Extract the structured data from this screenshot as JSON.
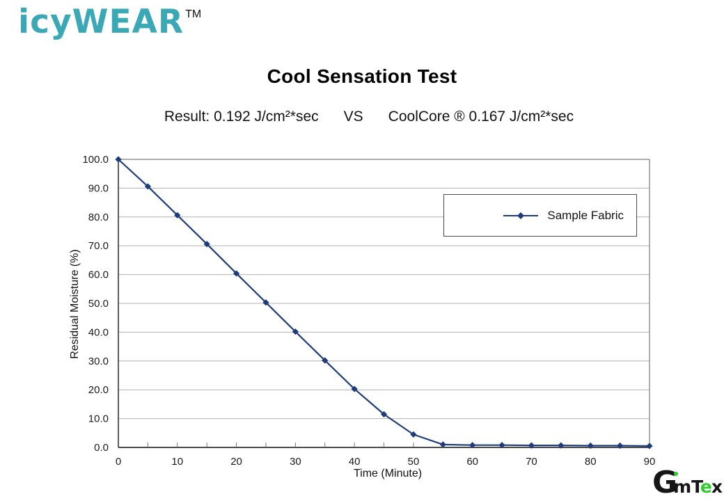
{
  "brand": {
    "part1": "icy",
    "part2": "WEAR",
    "tm": "TM"
  },
  "title": "Cool Sensation Test",
  "subtitle": {
    "result": "Result: 0.192 J/cm²*sec",
    "vs": "VS",
    "competitor": "CoolCore ® 0.167 J/cm²*sec"
  },
  "chart_data": {
    "type": "line",
    "x": [
      0,
      5,
      10,
      15,
      20,
      25,
      30,
      35,
      40,
      45,
      50,
      55,
      60,
      65,
      70,
      75,
      80,
      85,
      90
    ],
    "series": [
      {
        "name": "Sample Fabric",
        "values": [
          100.0,
          90.6,
          80.6,
          70.6,
          60.4,
          50.3,
          40.2,
          30.2,
          20.3,
          11.5,
          4.5,
          1.0,
          0.8,
          0.8,
          0.7,
          0.7,
          0.6,
          0.6,
          0.5
        ]
      }
    ],
    "title": "",
    "xlabel": "Time (Minute)",
    "ylabel": "Residual Moisture (%)",
    "xlim": [
      0,
      90
    ],
    "ylim": [
      0,
      100
    ],
    "xtick_labels": [
      "0",
      "10",
      "20",
      "30",
      "40",
      "50",
      "60",
      "70",
      "80",
      "90"
    ],
    "xtick_label_step": 10,
    "xtick_minor_step": 5,
    "ytick_labels": [
      "0.0",
      "10.0",
      "20.0",
      "30.0",
      "40.0",
      "50.0",
      "60.0",
      "70.0",
      "80.0",
      "90.0",
      "100.0"
    ],
    "ytick_step": 10,
    "grid": "horizontal",
    "legend_position": "upper-right",
    "marker": "diamond",
    "line_color": "#1E3C7B"
  },
  "footer_logo": {
    "g": "G",
    "im": "m",
    "t": "T",
    "e": "e",
    "x": "x"
  },
  "colors": {
    "brand_teal": "#3BA8B6",
    "line_navy": "#1E3C7B",
    "logo_green": "#2ECC2E",
    "gridline": "#B0B0B0",
    "axis": "#4A4A4A"
  }
}
